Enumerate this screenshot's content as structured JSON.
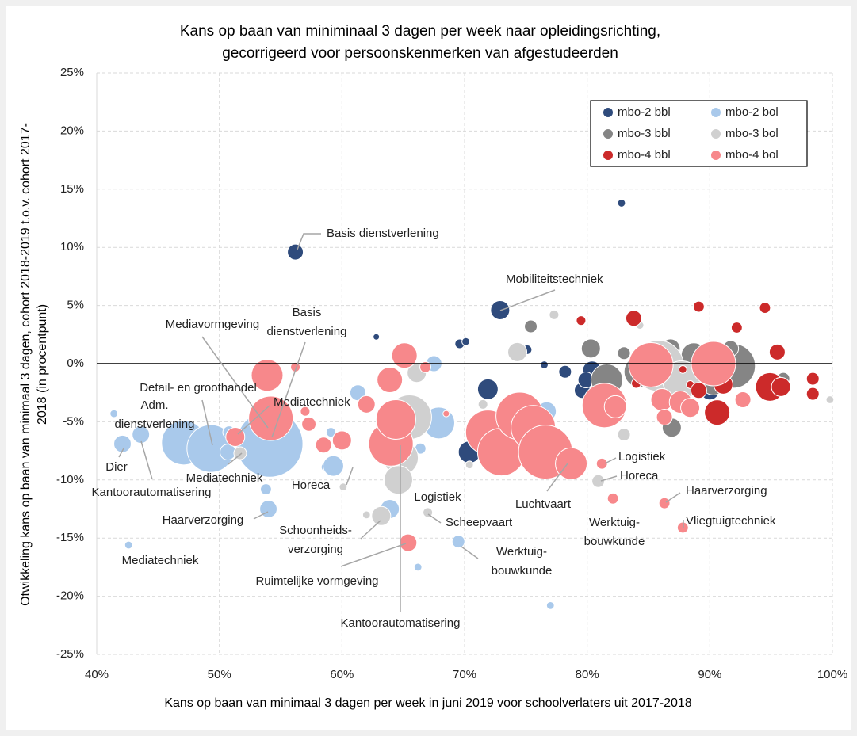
{
  "chart_data": {
    "type": "bubble",
    "title": [
      "Kans op baan van miniminaal 3 dagen per week naar opleidingsrichting,",
      "gecorrigeerd voor persoonskenmerken van afgestudeerden"
    ],
    "x_label": "Kans op baan van minimaal 3 dagen per week in juni 2019 voor schoolverlaters uit 2017-2018",
    "y_label": [
      "Otwikkeling kans op baan van minimaal 3 dagen, cohort 2018-2019 t.o.v. cohort 2017-",
      "2018 (in procentpunt)"
    ],
    "xlim": [
      40,
      100
    ],
    "ylim": [
      -25,
      25
    ],
    "xticks": [
      {
        "value": 40,
        "label": "40%"
      },
      {
        "value": 50,
        "label": "50%"
      },
      {
        "value": 60,
        "label": "60%"
      },
      {
        "value": 70,
        "label": "70%"
      },
      {
        "value": 80,
        "label": "80%"
      },
      {
        "value": 90,
        "label": "90%"
      },
      {
        "value": 100,
        "label": "100%"
      }
    ],
    "yticks": [
      {
        "value": -25,
        "label": "-25%"
      },
      {
        "value": -20,
        "label": "-20%"
      },
      {
        "value": -15,
        "label": "-15%"
      },
      {
        "value": -10,
        "label": "-10%"
      },
      {
        "value": -5,
        "label": "-5%"
      },
      {
        "value": 0,
        "label": "0%"
      },
      {
        "value": 5,
        "label": "5%"
      },
      {
        "value": 10,
        "label": "10%"
      },
      {
        "value": 15,
        "label": "15%"
      },
      {
        "value": 20,
        "label": "20%"
      },
      {
        "value": 25,
        "label": "25%"
      }
    ],
    "grid": true,
    "zero_line": true,
    "legend": "top-right",
    "series": [
      {
        "name": "mbo-2 bbl",
        "color": "#2f4b7c",
        "x": [
          56.2,
          82.8,
          72.9,
          62.8,
          69.6,
          70.1,
          75.1,
          76.5,
          78.2,
          71.9,
          70.4,
          73.9,
          79.6,
          80.4,
          79.9,
          90.0,
          90.6
        ],
        "values": [
          9.6,
          13.8,
          4.6,
          2.3,
          1.7,
          1.9,
          1.2,
          -0.1,
          -0.7,
          -2.2,
          -7.6,
          -4.7,
          -2.3,
          -0.6,
          -1.4,
          -2.3,
          -0.9
        ],
        "sizes": [
          25,
          6,
          36,
          4,
          9,
          6,
          9,
          6,
          16,
          42,
          49,
          49,
          25,
          36,
          25,
          36,
          25
        ]
      },
      {
        "name": "mbo-2 bol",
        "color": "#a9c9eb",
        "x": [
          41.4,
          42.1,
          43.6,
          42.6,
          47.1,
          49.3,
          50.7,
          50.8,
          54.1,
          53.8,
          54.0,
          59.1,
          58.7,
          59.3,
          61.3,
          63.9,
          66.4,
          67.5,
          67.9,
          66.2,
          69.5,
          77.0,
          76.7,
          85.2
        ],
        "values": [
          -4.3,
          -6.9,
          -6.1,
          -15.6,
          -6.8,
          -7.3,
          -7.6,
          -5.9,
          -6.9,
          -10.8,
          -12.5,
          -5.9,
          -8.9,
          -8.8,
          -2.5,
          -12.5,
          -7.3,
          0,
          -5.1,
          -17.5,
          -15.3,
          -20.8,
          -4.1,
          -1.1
        ],
        "sizes": [
          6,
          30,
          30,
          6,
          196,
          225,
          25,
          16,
          441,
          12,
          30,
          9,
          9,
          42,
          25,
          36,
          12,
          25,
          100,
          6,
          16,
          6,
          36,
          25
        ]
      },
      {
        "name": "mbo-3 bbl",
        "color": "#858585",
        "x": [
          75.4,
          80.3,
          81.6,
          84.3,
          86.8,
          86.9,
          88.7,
          91.9,
          91.7,
          90.3,
          96.0,
          83.0
        ],
        "values": [
          3.2,
          1.3,
          -1.4,
          -0.7,
          1.3,
          -5.5,
          0.7,
          -0.2,
          1.3,
          -1.6,
          -1.3,
          0.9
        ],
        "sizes": [
          16,
          36,
          100,
          100,
          36,
          36,
          64,
          196,
          25,
          64,
          16,
          16
        ]
      },
      {
        "name": "mbo-3 bol",
        "color": "#d0d0d0",
        "x": [
          77.3,
          74.3,
          66.1,
          64.9,
          65.5,
          64.8,
          64.6,
          63.2,
          62.0,
          60.1,
          67.0,
          71.5,
          70.4,
          81.1,
          83.0,
          80.9,
          85.8,
          87.7,
          99.8,
          51.7,
          84.3
        ],
        "values": [
          4.2,
          1.0,
          -0.8,
          -3.7,
          -4.6,
          -8.1,
          -10.0,
          -13.1,
          -13.0,
          -10.6,
          -12.8,
          -3.5,
          -8.7,
          -4.4,
          -6.1,
          -10.1,
          -0.2,
          -1.4,
          -3.1,
          -7.7,
          3.3
        ],
        "sizes": [
          9,
          36,
          36,
          36,
          196,
          121,
          81,
          36,
          6,
          6,
          9,
          9,
          6,
          16,
          16,
          16,
          256,
          144,
          6,
          16,
          6
        ]
      },
      {
        "name": "mbo-4 bbl",
        "color": "#cc2a2a",
        "x": [
          79.5,
          83.8,
          89.1,
          94.5,
          92.2,
          95.5,
          87.8,
          84.0,
          88.4,
          89.1,
          91.1,
          90.6,
          94.9,
          95.8,
          98.4,
          98.4
        ],
        "values": [
          3.7,
          3.9,
          4.9,
          4.8,
          3.1,
          1.0,
          -0.5,
          -1.7,
          -1.8,
          -2.3,
          -1.8,
          -4.2,
          -2.0,
          -2.0,
          -1.3,
          -2.6
        ],
        "sizes": [
          9,
          25,
          12,
          12,
          12,
          25,
          6,
          9,
          6,
          25,
          36,
          64,
          81,
          36,
          16,
          16
        ]
      },
      {
        "name": "mbo-4 bol",
        "color": "#f7888b",
        "x": [
          53.9,
          54.2,
          56.2,
          57.0,
          57.3,
          51.3,
          58.5,
          60.0,
          62.0,
          63.9,
          65.1,
          64.0,
          64.4,
          66.8,
          68.5,
          65.4,
          71.9,
          73.0,
          74.5,
          75.6,
          76.6,
          78.7,
          81.2,
          82.1,
          86.3,
          87.8,
          81.4,
          82.3,
          85.2,
          86.1,
          86.3,
          87.6,
          88.4,
          90.3,
          92.7
        ],
        "values": [
          -1.0,
          -4.7,
          -0.3,
          -4.1,
          -5.2,
          -6.3,
          -7.0,
          -6.6,
          -3.5,
          -1.4,
          0.7,
          -6.9,
          -4.8,
          -0.3,
          -4.3,
          -15.4,
          -5.9,
          -7.6,
          -4.5,
          -5.5,
          -7.6,
          -8.6,
          -8.6,
          -11.6,
          -12.0,
          -14.1,
          -3.6,
          -3.7,
          -0.1,
          -3.1,
          -4.6,
          -3.3,
          -3.8,
          0,
          -3.1
        ],
        "sizes": [
          100,
          196,
          9,
          9,
          20,
          36,
          25,
          36,
          30,
          64,
          64,
          196,
          156,
          12,
          4,
          30,
          196,
          225,
          225,
          196,
          289,
          100,
          12,
          12,
          12,
          12,
          196,
          49,
          196,
          49,
          25,
          49,
          36,
          196,
          25
        ]
      }
    ],
    "annotations": [
      [
        "Basis dienstverlening"
      ],
      [
        "Mobiliteitstechniek"
      ],
      [
        "Basis",
        "dienstverlening"
      ],
      [
        "Mediavormgeving"
      ],
      [
        "Detail- en groothandel"
      ],
      [
        "Adm.",
        "dienstverlening"
      ],
      [
        "Mediatechniek"
      ],
      [
        "Dier"
      ],
      [
        "Mediatechniek"
      ],
      [
        "Kantoorautomatisering"
      ],
      [
        "Horeca"
      ],
      [
        "Haarverzorging"
      ],
      [
        "Mediatechniek"
      ],
      [
        "Logistiek"
      ],
      [
        "Schoonheids-",
        "verzorging"
      ],
      [
        "Scheepvaart"
      ],
      [
        "Werktuig-",
        "bouwkunde"
      ],
      [
        "Ruimtelijke vormgeving"
      ],
      [
        "Kantoorautomatisering"
      ],
      [
        "Luchtvaart"
      ],
      [
        "Logistiek"
      ],
      [
        "Horeca"
      ],
      [
        "Werktuig-",
        "bouwkunde"
      ],
      [
        "Haarverzorging"
      ],
      [
        "Vliegtuigtechniek"
      ]
    ]
  }
}
